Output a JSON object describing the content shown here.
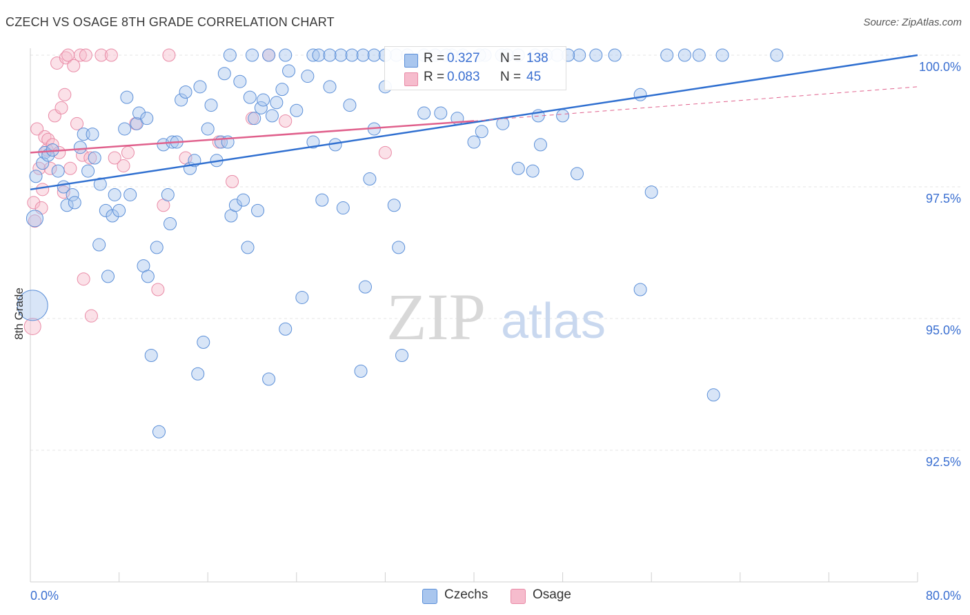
{
  "header": {
    "title": "CZECH VS OSAGE 8TH GRADE CORRELATION CHART",
    "source": "Source: ZipAtlas.com"
  },
  "watermark": {
    "zip": "ZIP",
    "atlas": "atlas"
  },
  "stats": {
    "czechs": {
      "r_label": "R =",
      "r_value": "0.327",
      "n_label": "N =",
      "n_value": "138"
    },
    "osage": {
      "r_label": "R =",
      "r_value": "0.083",
      "n_label": "N =",
      "n_value": "45"
    }
  },
  "legend": {
    "czechs": "Czechs",
    "osage": "Osage"
  },
  "colors": {
    "czechs_fill": "#a9c6ee",
    "czechs_stroke": "#5b8fd8",
    "czechs_line": "#2f6fd0",
    "osage_fill": "#f6bccd",
    "osage_stroke": "#e98aa6",
    "osage_line": "#e0608c",
    "axis_text": "#3a6fd1",
    "grid": "#e4e4e4"
  },
  "chart_data": {
    "type": "scatter",
    "title": "CZECH VS OSAGE 8TH GRADE CORRELATION CHART",
    "xlabel": "",
    "ylabel": "8th Grade",
    "xlim": [
      0,
      80
    ],
    "ylim": [
      90.0,
      100.35
    ],
    "x_tick_labels": [
      "0.0%",
      "80.0%"
    ],
    "y_ticks": [
      92.5,
      95.0,
      97.5,
      100.0
    ],
    "y_tick_labels": [
      "92.5%",
      "95.0%",
      "97.5%",
      "100.0%"
    ],
    "grid": true,
    "legend_position": "bottom-center",
    "series": [
      {
        "name": "Czechs",
        "trend": {
          "x": [
            0,
            80
          ],
          "y": [
            97.45,
            100.0
          ]
        },
        "points": [
          [
            0.2,
            95.25,
            3
          ],
          [
            0.4,
            96.9,
            2
          ],
          [
            0.5,
            97.7,
            1
          ],
          [
            1.1,
            97.95,
            1
          ],
          [
            1.3,
            98.15,
            1
          ],
          [
            1.6,
            98.1,
            1
          ],
          [
            2.0,
            98.2,
            1
          ],
          [
            2.5,
            97.8,
            1
          ],
          [
            3.0,
            97.5,
            1
          ],
          [
            3.3,
            97.15,
            1
          ],
          [
            3.8,
            97.35,
            1
          ],
          [
            4.0,
            97.2,
            1
          ],
          [
            4.5,
            98.25,
            1
          ],
          [
            4.8,
            98.5,
            1
          ],
          [
            5.2,
            97.8,
            1
          ],
          [
            5.6,
            98.5,
            1
          ],
          [
            5.8,
            98.05,
            1
          ],
          [
            6.3,
            97.55,
            1
          ],
          [
            6.2,
            96.4,
            1
          ],
          [
            6.8,
            97.05,
            1
          ],
          [
            7.0,
            95.8,
            1
          ],
          [
            7.4,
            96.95,
            1
          ],
          [
            7.6,
            97.35,
            1
          ],
          [
            8.0,
            97.05,
            1
          ],
          [
            8.5,
            98.6,
            1
          ],
          [
            8.7,
            99.2,
            1
          ],
          [
            9.0,
            97.35,
            1
          ],
          [
            9.6,
            98.7,
            1
          ],
          [
            9.8,
            98.9,
            1
          ],
          [
            10.2,
            96.0,
            1
          ],
          [
            10.6,
            95.8,
            1
          ],
          [
            10.5,
            98.8,
            1
          ],
          [
            10.9,
            94.3,
            1
          ],
          [
            11.4,
            96.35,
            1
          ],
          [
            11.6,
            92.85,
            1
          ],
          [
            12.0,
            98.3,
            1
          ],
          [
            12.4,
            97.35,
            1
          ],
          [
            12.6,
            96.8,
            1
          ],
          [
            12.8,
            98.35,
            1
          ],
          [
            13.2,
            98.35,
            1
          ],
          [
            13.6,
            99.15,
            1
          ],
          [
            14.0,
            99.3,
            1
          ],
          [
            14.4,
            97.85,
            1
          ],
          [
            14.8,
            98.0,
            1
          ],
          [
            15.1,
            93.95,
            1
          ],
          [
            15.3,
            99.4,
            1
          ],
          [
            15.6,
            94.55,
            1
          ],
          [
            16.0,
            98.6,
            1
          ],
          [
            16.3,
            99.05,
            1
          ],
          [
            16.8,
            98.0,
            1
          ],
          [
            17.2,
            98.35,
            1
          ],
          [
            17.5,
            99.65,
            1
          ],
          [
            17.8,
            98.35,
            1
          ],
          [
            18.1,
            96.95,
            1
          ],
          [
            18.5,
            97.15,
            1
          ],
          [
            18.9,
            99.5,
            1
          ],
          [
            19.2,
            97.25,
            1
          ],
          [
            19.6,
            96.35,
            1
          ],
          [
            19.8,
            99.2,
            1
          ],
          [
            20.2,
            98.8,
            1
          ],
          [
            20.5,
            97.05,
            1
          ],
          [
            20.8,
            99.0,
            1
          ],
          [
            21.0,
            99.15,
            1
          ],
          [
            21.5,
            93.85,
            1
          ],
          [
            21.8,
            98.85,
            1
          ],
          [
            22.2,
            99.1,
            1
          ],
          [
            22.7,
            99.35,
            1
          ],
          [
            23.0,
            94.8,
            1
          ],
          [
            23.3,
            99.7,
            1
          ],
          [
            24.0,
            98.95,
            1
          ],
          [
            24.5,
            95.4,
            1
          ],
          [
            25.0,
            99.6,
            1
          ],
          [
            25.5,
            98.35,
            1
          ],
          [
            26.3,
            97.25,
            1
          ],
          [
            27.0,
            99.4,
            1
          ],
          [
            27.5,
            98.3,
            1
          ],
          [
            28.2,
            97.1,
            1
          ],
          [
            28.8,
            99.05,
            1
          ],
          [
            29.8,
            94.0,
            1
          ],
          [
            30.2,
            95.6,
            1
          ],
          [
            30.6,
            97.65,
            1
          ],
          [
            31.0,
            98.6,
            1
          ],
          [
            32.0,
            99.4,
            1
          ],
          [
            32.8,
            97.15,
            1
          ],
          [
            33.2,
            96.35,
            1
          ],
          [
            33.5,
            94.3,
            1
          ],
          [
            35.5,
            98.9,
            1
          ],
          [
            37.0,
            98.9,
            1
          ],
          [
            38.5,
            98.8,
            1
          ],
          [
            40.0,
            98.35,
            1
          ],
          [
            40.7,
            98.55,
            1
          ],
          [
            42.6,
            98.7,
            1
          ],
          [
            44.0,
            97.85,
            1
          ],
          [
            45.3,
            97.8,
            1
          ],
          [
            45.8,
            98.85,
            1
          ],
          [
            46.0,
            98.3,
            1
          ],
          [
            48.0,
            98.85,
            1
          ],
          [
            49.3,
            97.75,
            1
          ],
          [
            55.0,
            99.25,
            1
          ],
          [
            56.0,
            97.4,
            1
          ],
          [
            61.6,
            93.55,
            1
          ],
          [
            55.0,
            95.55,
            1
          ],
          [
            20.0,
            100.0,
            1
          ],
          [
            23.0,
            100.0,
            1
          ],
          [
            25.5,
            100.0,
            1
          ],
          [
            28.0,
            100.0,
            1
          ],
          [
            29.0,
            100.0,
            1
          ],
          [
            30.0,
            100.0,
            1
          ],
          [
            33.0,
            100.0,
            1
          ],
          [
            35.5,
            100.0,
            1
          ],
          [
            36.5,
            100.0,
            1
          ],
          [
            38.0,
            100.0,
            1
          ],
          [
            41.0,
            100.0,
            1
          ],
          [
            42.5,
            100.0,
            1
          ],
          [
            44.0,
            100.0,
            1
          ],
          [
            45.5,
            100.0,
            1
          ],
          [
            47.5,
            100.0,
            1
          ],
          [
            49.5,
            100.0,
            1
          ],
          [
            52.7,
            100.0,
            1
          ],
          [
            57.4,
            100.0,
            1
          ],
          [
            60.3,
            100.0,
            1
          ],
          [
            62.4,
            100.0,
            1
          ],
          [
            26.0,
            100.0,
            1
          ],
          [
            31.0,
            100.0,
            1
          ],
          [
            18.0,
            100.0,
            1
          ],
          [
            39.0,
            100.0,
            1
          ],
          [
            46.5,
            100.0,
            1
          ],
          [
            59.0,
            100.0,
            1
          ],
          [
            67.3,
            100.0,
            1
          ],
          [
            34.0,
            100.0,
            1
          ],
          [
            37.5,
            100.0,
            1
          ],
          [
            43.0,
            100.0,
            1
          ],
          [
            48.5,
            100.0,
            1
          ],
          [
            51.0,
            100.0,
            1
          ],
          [
            27.0,
            100.0,
            1
          ],
          [
            32.0,
            100.0,
            1
          ],
          [
            40.5,
            100.0,
            1
          ],
          [
            21.5,
            100.0,
            1
          ]
        ]
      },
      {
        "name": "Osage",
        "trend": {
          "x": [
            0,
            40
          ],
          "y": [
            98.15,
            98.75
          ]
        },
        "trend_extension": {
          "x": [
            40,
            80
          ],
          "y": [
            98.75,
            99.4
          ]
        },
        "points": [
          [
            0.2,
            94.85,
            2
          ],
          [
            0.3,
            97.2,
            1
          ],
          [
            0.4,
            96.85,
            1
          ],
          [
            0.6,
            98.6,
            1
          ],
          [
            0.8,
            97.85,
            1
          ],
          [
            1.0,
            97.1,
            1
          ],
          [
            1.1,
            97.45,
            1
          ],
          [
            1.3,
            98.45,
            1
          ],
          [
            1.5,
            98.2,
            1
          ],
          [
            1.6,
            98.4,
            1
          ],
          [
            1.8,
            97.85,
            1
          ],
          [
            2.0,
            98.3,
            1
          ],
          [
            2.2,
            98.85,
            1
          ],
          [
            2.4,
            99.85,
            1
          ],
          [
            2.6,
            98.15,
            1
          ],
          [
            2.8,
            99.0,
            1
          ],
          [
            3.0,
            97.4,
            1
          ],
          [
            3.1,
            99.25,
            1
          ],
          [
            3.2,
            99.95,
            1
          ],
          [
            3.4,
            100.0,
            1
          ],
          [
            3.6,
            97.85,
            1
          ],
          [
            3.9,
            99.8,
            1
          ],
          [
            4.2,
            98.7,
            1
          ],
          [
            4.5,
            100.0,
            1
          ],
          [
            4.7,
            98.1,
            1
          ],
          [
            4.8,
            95.75,
            1
          ],
          [
            5.0,
            100.0,
            1
          ],
          [
            5.4,
            98.05,
            1
          ],
          [
            5.5,
            95.05,
            1
          ],
          [
            6.4,
            100.0,
            1
          ],
          [
            7.3,
            100.0,
            1
          ],
          [
            7.6,
            98.05,
            1
          ],
          [
            8.4,
            97.9,
            1
          ],
          [
            8.8,
            98.15,
            1
          ],
          [
            9.5,
            98.7,
            1
          ],
          [
            11.5,
            95.55,
            1
          ],
          [
            12.0,
            97.15,
            1
          ],
          [
            12.5,
            100.0,
            1
          ],
          [
            14.0,
            98.05,
            1
          ],
          [
            17.0,
            98.35,
            1
          ],
          [
            18.2,
            97.6,
            1
          ],
          [
            21.5,
            100.0,
            1
          ],
          [
            23.0,
            98.75,
            1
          ],
          [
            32.0,
            98.15,
            1
          ],
          [
            20.0,
            98.8,
            1
          ]
        ]
      }
    ]
  }
}
